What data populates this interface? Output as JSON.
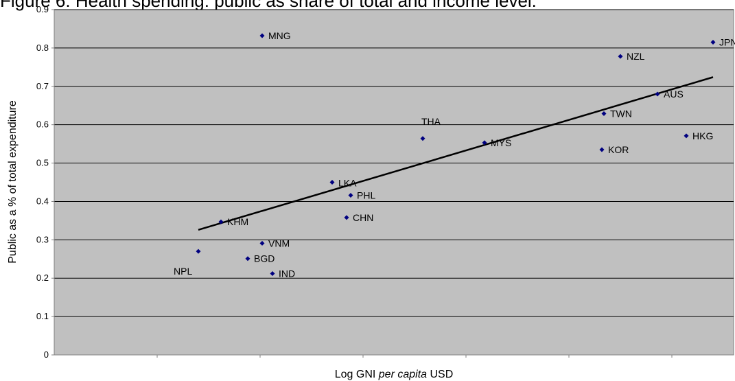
{
  "chart_data": {
    "type": "scatter",
    "title": "Figure 6. Health spending: public as share of total and income level.",
    "xlabel_prefix": "Log GNI ",
    "xlabel_italic": "per capita",
    "xlabel_suffix": " USD",
    "ylabel": "Public as a % of total expenditure",
    "ylim": [
      0,
      0.9
    ],
    "xlim": [
      2,
      5.3
    ],
    "y_ticks": [
      "0",
      "0.1",
      "0.2",
      "0.3",
      "0.4",
      "0.5",
      "0.6",
      "0.7",
      "0.8",
      "0.9"
    ],
    "grid": true,
    "background_color": "#c0c0c0",
    "marker_color": "#000080",
    "series": [
      {
        "points": [
          {
            "label": "NPL",
            "x": 2.7,
            "y": 0.27
          },
          {
            "label": "KHM",
            "x": 2.81,
            "y": 0.347
          },
          {
            "label": "BGD",
            "x": 2.94,
            "y": 0.251
          },
          {
            "label": "VNM",
            "x": 3.01,
            "y": 0.291
          },
          {
            "label": "MNG",
            "x": 3.01,
            "y": 0.832
          },
          {
            "label": "IND",
            "x": 3.06,
            "y": 0.212
          },
          {
            "label": "LKA",
            "x": 3.35,
            "y": 0.45
          },
          {
            "label": "CHN",
            "x": 3.42,
            "y": 0.358
          },
          {
            "label": "PHL",
            "x": 3.44,
            "y": 0.416
          },
          {
            "label": "THA",
            "x": 3.79,
            "y": 0.564
          },
          {
            "label": "MYS",
            "x": 4.09,
            "y": 0.553
          },
          {
            "label": "KOR",
            "x": 4.66,
            "y": 0.535
          },
          {
            "label": "TWN",
            "x": 4.67,
            "y": 0.629
          },
          {
            "label": "NZL",
            "x": 4.75,
            "y": 0.778
          },
          {
            "label": "AUS",
            "x": 4.93,
            "y": 0.68
          },
          {
            "label": "HKG",
            "x": 5.07,
            "y": 0.571
          },
          {
            "label": "JPN",
            "x": 5.2,
            "y": 0.815
          }
        ]
      }
    ],
    "trendline": {
      "x": [
        2.7,
        5.2
      ],
      "y": [
        0.326,
        0.724
      ]
    }
  }
}
